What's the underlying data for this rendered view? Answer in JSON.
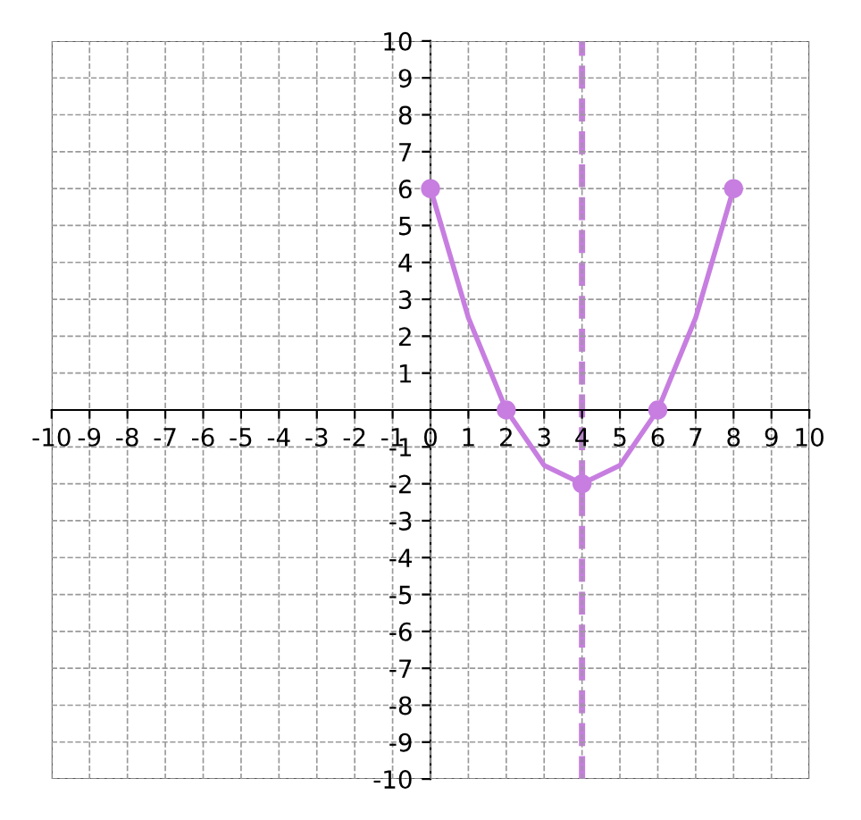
{
  "chart_data": {
    "type": "line",
    "series": [
      {
        "color": "#c77ee0",
        "x": [
          0,
          1,
          2,
          3,
          4,
          5,
          6,
          7,
          8
        ],
        "values": [
          6,
          2.5,
          0,
          -1.5,
          -2,
          -1.5,
          0,
          2.5,
          6
        ],
        "marker": "none",
        "line_style": "solid"
      },
      {
        "type": "scatter",
        "color": "#c77ee0",
        "x": [
          0,
          2,
          4,
          6,
          8
        ],
        "values": [
          6,
          0,
          -2,
          0,
          6
        ],
        "marker": "circle"
      }
    ],
    "ref_lines": [
      {
        "axis": "x",
        "value": 4,
        "color": "#c77ee0",
        "line_style": "dashed"
      }
    ],
    "xlim": [
      -10,
      10
    ],
    "ylim": [
      -10,
      10
    ],
    "xticks": [
      {
        "value": -10,
        "label": "-10"
      },
      {
        "value": -9,
        "label": "-9"
      },
      {
        "value": -8,
        "label": "-8"
      },
      {
        "value": -7,
        "label": "-7"
      },
      {
        "value": -6,
        "label": "-6"
      },
      {
        "value": -5,
        "label": "-5"
      },
      {
        "value": -4,
        "label": "-4"
      },
      {
        "value": -3,
        "label": "-3"
      },
      {
        "value": -2,
        "label": "-2"
      },
      {
        "value": -1,
        "label": "-1"
      },
      0,
      1,
      2,
      3,
      4,
      5,
      6,
      7,
      8,
      9,
      10
    ],
    "yticks": [
      {
        "value": -10,
        "label": "-10"
      },
      {
        "value": -9,
        "label": "-9"
      },
      {
        "value": -8,
        "label": "-8"
      },
      {
        "value": -7,
        "label": "-7"
      },
      {
        "value": -6,
        "label": "-6"
      },
      {
        "value": -5,
        "label": "-5"
      },
      {
        "value": -4,
        "label": "-4"
      },
      {
        "value": -3,
        "label": "-3"
      },
      {
        "value": -2,
        "label": "-2"
      },
      {
        "value": -1,
        "label": "-1"
      },
      1,
      2,
      3,
      4,
      5,
      6,
      7,
      8,
      9,
      10
    ],
    "grid": true
  }
}
